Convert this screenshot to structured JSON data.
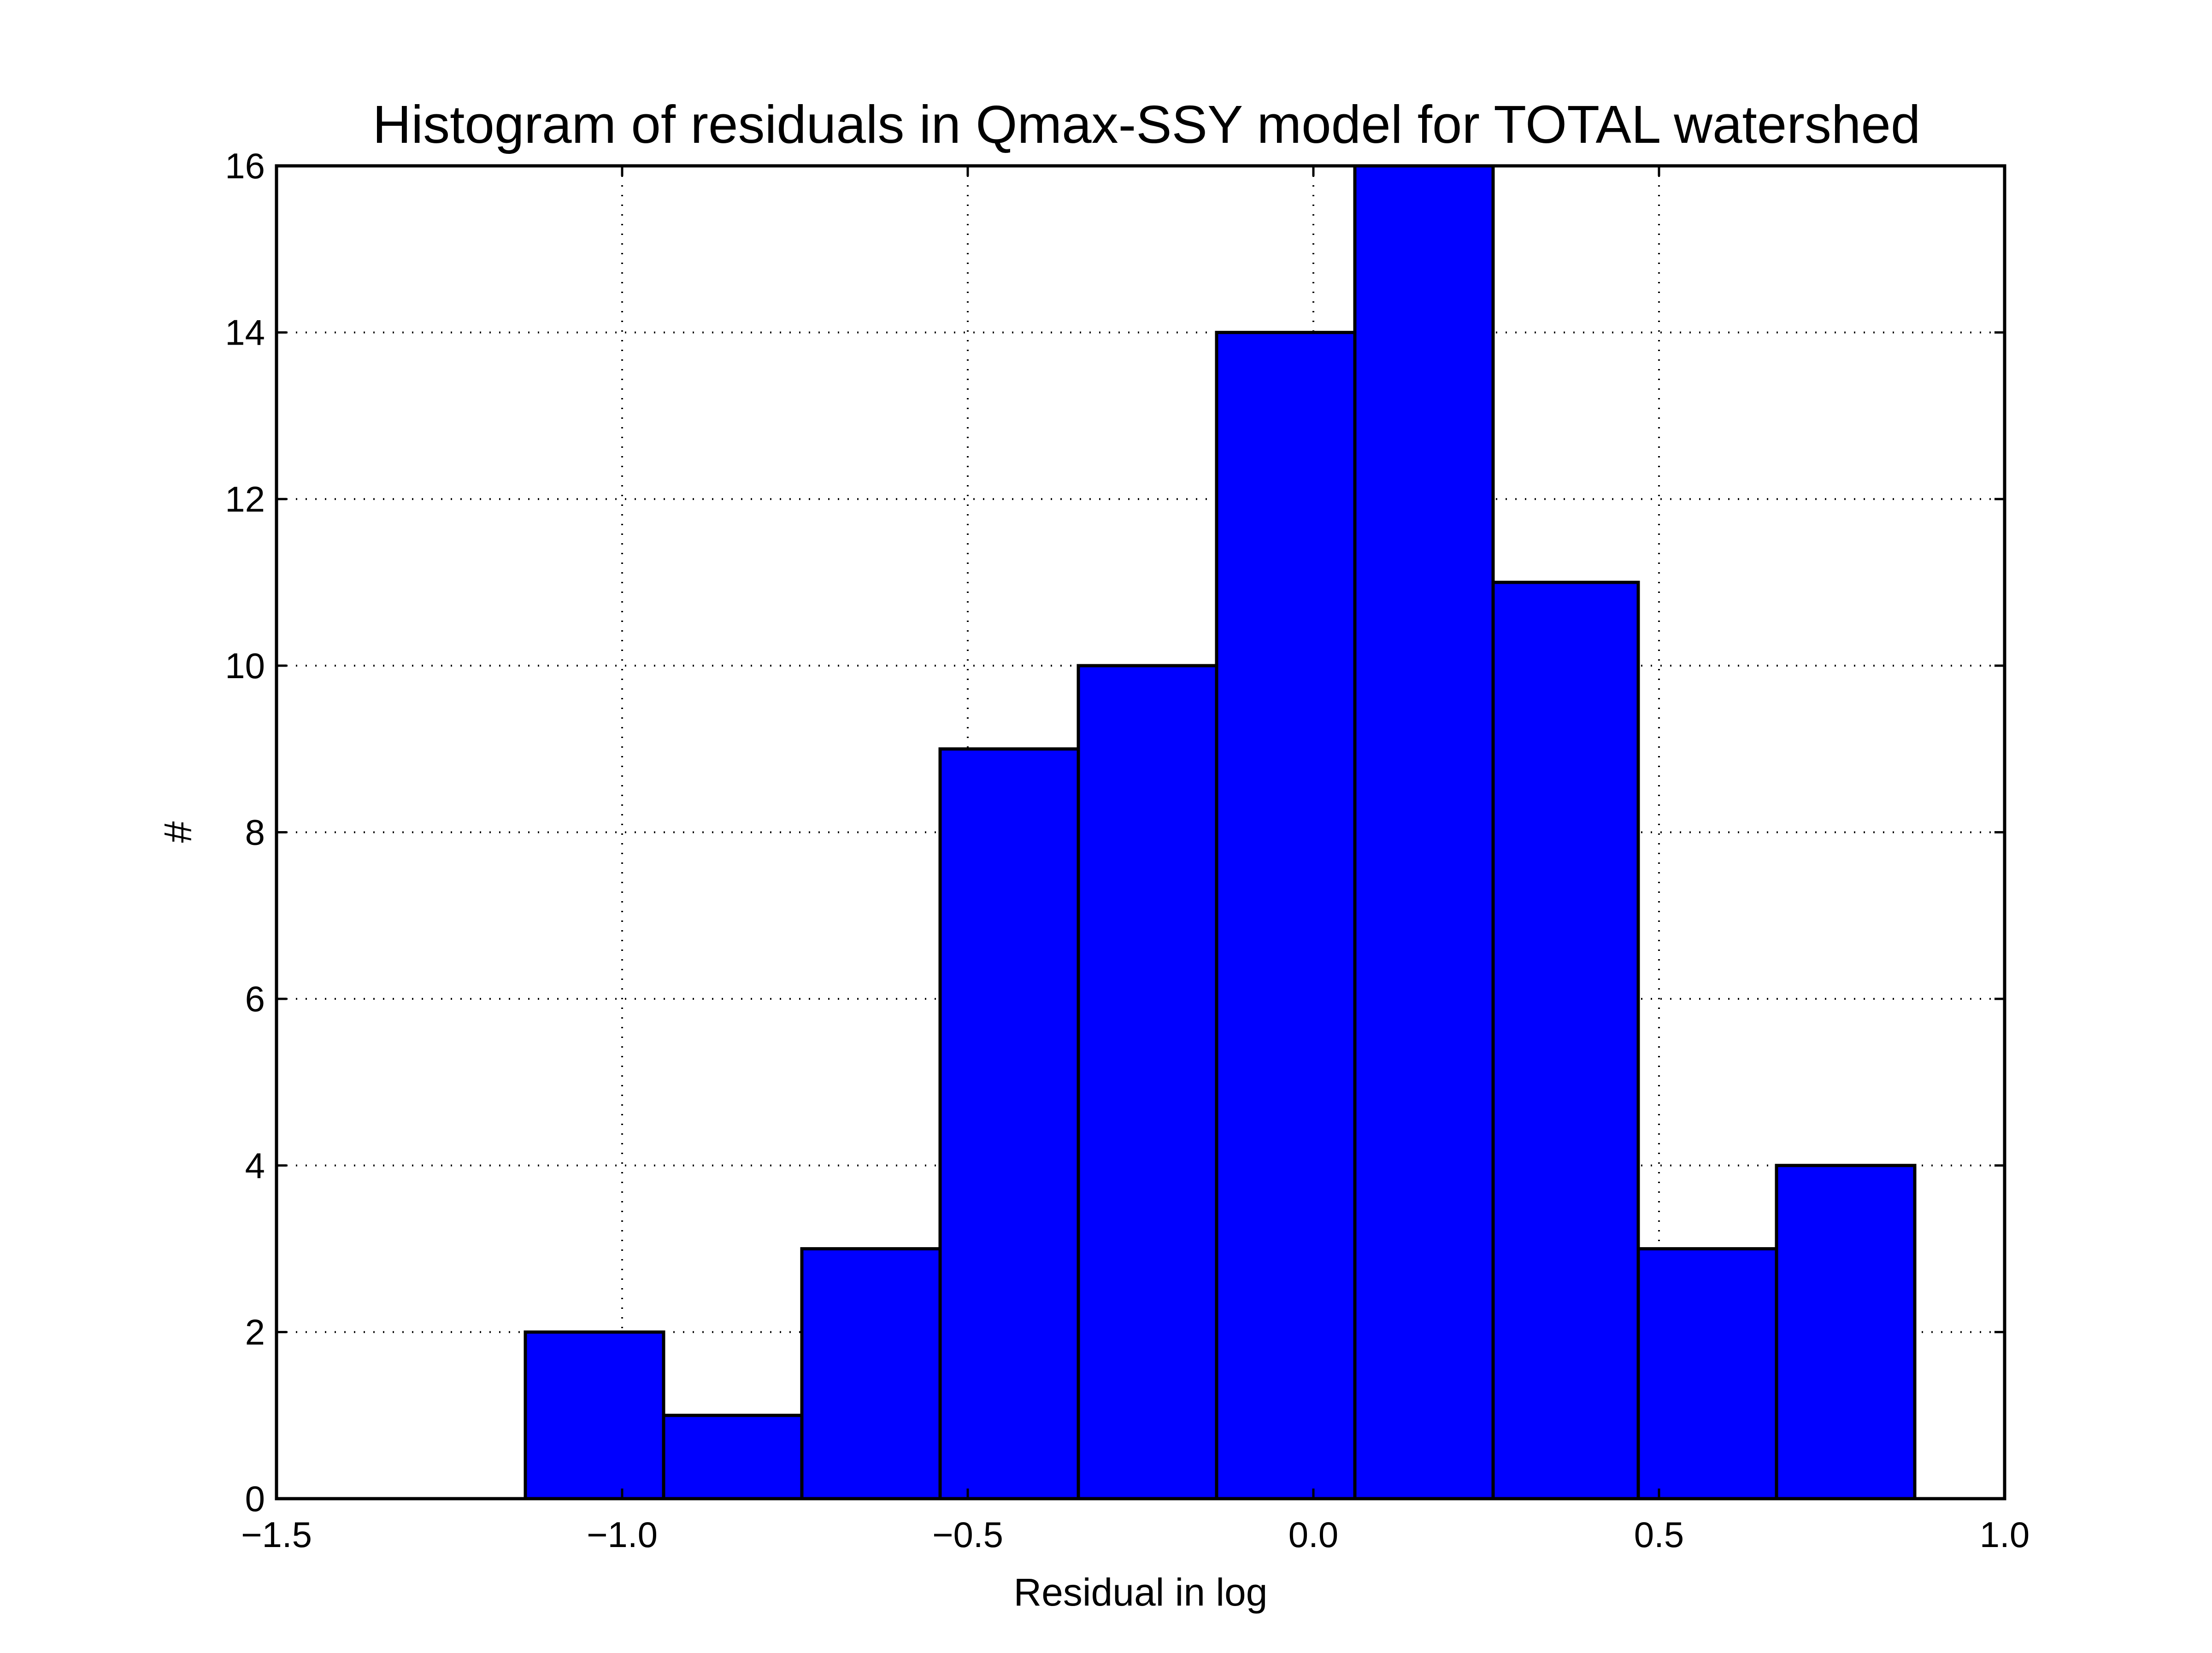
{
  "chart_data": {
    "type": "bar",
    "title": "Histogram of residuals in Qmax-SSY model for TOTAL watershed",
    "xlabel": "Residual in log",
    "ylabel": "#",
    "xlim": [
      -1.5,
      1.0
    ],
    "ylim": [
      0,
      16
    ],
    "grid": true,
    "x_ticks": [
      "−1.5",
      "−1.0",
      "−0.5",
      "0.0",
      "0.5",
      "1.0"
    ],
    "y_ticks": [
      "0",
      "2",
      "4",
      "6",
      "8",
      "10",
      "12",
      "14",
      "16"
    ],
    "bin_edges": [
      -1.14,
      -0.94,
      -0.74,
      -0.54,
      -0.34,
      -0.14,
      0.06,
      0.26,
      0.47,
      0.67,
      0.87
    ],
    "values": [
      2,
      1,
      3,
      9,
      10,
      14,
      16,
      11,
      3,
      4
    ],
    "bar_color": "#0000ff"
  }
}
